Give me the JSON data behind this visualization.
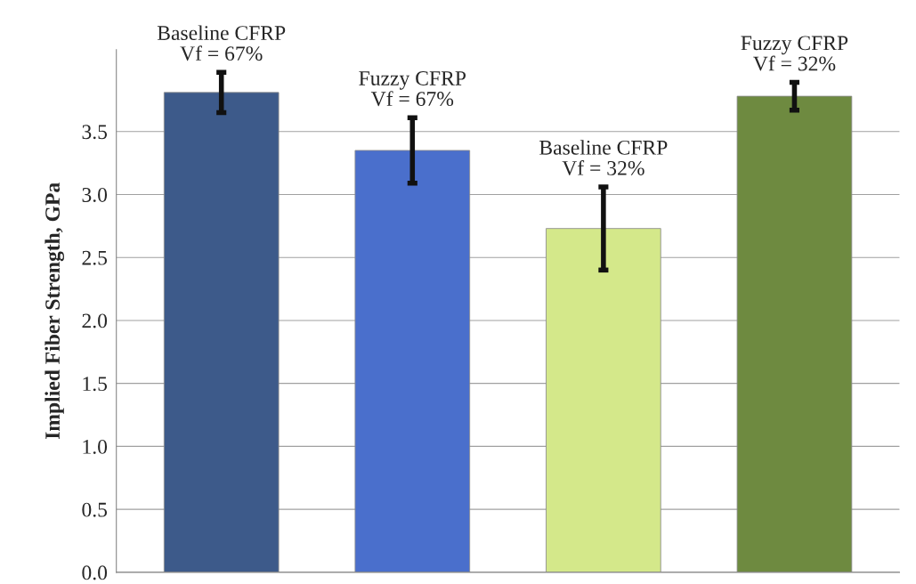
{
  "chart_data": {
    "type": "bar",
    "ylabel": "Implied Fiber Strength, GPa",
    "categories": [
      null,
      null,
      null,
      null
    ],
    "values": [
      3.81,
      3.35,
      2.73,
      3.78
    ],
    "errors": [
      0.16,
      0.26,
      0.33,
      0.11
    ],
    "colors": [
      "#3d5a8a",
      "#4a6fcc",
      "#d4e88a",
      "#6e8a40"
    ],
    "annotations": [
      "Baseline CFRP\nVf = 67%",
      "Fuzzy CFRP\nVf = 67%",
      "Baseline CFRP\nVf = 32%",
      "Fuzzy CFRP\nVf = 32%"
    ],
    "ylim": [
      0,
      4.15
    ],
    "yticks": [
      {
        "value": 0,
        "label": "0.0"
      },
      {
        "value": 0.5,
        "label": "0.5"
      },
      {
        "value": 1,
        "label": "1.0"
      },
      {
        "value": 1.5,
        "label": "1.5"
      },
      {
        "value": 2,
        "label": "2.0"
      },
      {
        "value": 2.5,
        "label": "2.5"
      },
      {
        "value": 3,
        "label": "3.0"
      },
      {
        "value": 3.5,
        "label": "3.5"
      }
    ],
    "grid": "y",
    "legend": false
  }
}
